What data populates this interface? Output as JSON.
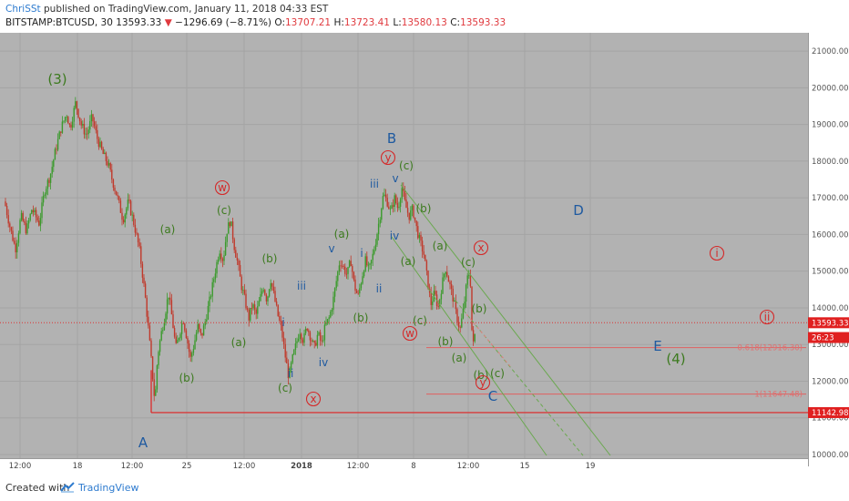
{
  "header": {
    "user": "ChriSSt",
    "published_text": "published on TradingView.com, January 11, 2018 04:33 EST",
    "symbol": "BITSTAMP:BTCUSD, 30",
    "last": "13593.33",
    "change_arrow": "▼",
    "change": "−1296.69 (−8.71%)",
    "o_label": "O:",
    "o_val": "13707.21",
    "h_label": "H:",
    "h_val": "13723.41",
    "l_label": "L:",
    "l_val": "13580.13",
    "c_label": "C:",
    "c_val": "13593.33"
  },
  "footer": {
    "created_with": "Created with",
    "brand": "TradingView"
  },
  "colors": {
    "green_label": "#3c7a1e",
    "blue_label": "#1f5aa0",
    "red_label": "#d42a2a",
    "bull": "#3a9a2c",
    "bear": "#c0392b"
  },
  "chart_data": {
    "type": "candlestick",
    "title": "BITSTAMP:BTCUSD, 30",
    "y_axis": {
      "ylim": [
        9900,
        21500
      ],
      "ticks": [
        "21000.00",
        "20000.00",
        "19000.00",
        "18000.00",
        "17000.00",
        "16000.00",
        "15000.00",
        "14000.00",
        "13000.00",
        "12000.00",
        "11000.00",
        "10000.00"
      ]
    },
    "x_axis": {
      "ticks": [
        "12:00",
        "18",
        "12:00",
        "25",
        "12:00",
        "2018",
        "12:00",
        "8",
        "12:00",
        "15",
        "19"
      ]
    },
    "price_path": [
      [
        0,
        16900
      ],
      [
        6,
        16200
      ],
      [
        12,
        15600
      ],
      [
        18,
        16500
      ],
      [
        24,
        16100
      ],
      [
        30,
        16700
      ],
      [
        38,
        16300
      ],
      [
        44,
        17200
      ],
      [
        50,
        17600
      ],
      [
        56,
        18300
      ],
      [
        62,
        18900
      ],
      [
        68,
        19300
      ],
      [
        72,
        18900
      ],
      [
        78,
        19600
      ],
      [
        84,
        19000
      ],
      [
        90,
        18700
      ],
      [
        96,
        19200
      ],
      [
        102,
        18600
      ],
      [
        108,
        18200
      ],
      [
        114,
        17900
      ],
      [
        118,
        17500
      ],
      [
        124,
        17000
      ],
      [
        130,
        16400
      ],
      [
        136,
        16900
      ],
      [
        142,
        16300
      ],
      [
        148,
        15600
      ],
      [
        154,
        14400
      ],
      [
        158,
        13400
      ],
      [
        162,
        12300
      ],
      [
        165,
        11400
      ],
      [
        168,
        12700
      ],
      [
        172,
        13300
      ],
      [
        176,
        13800
      ],
      [
        180,
        14400
      ],
      [
        184,
        13700
      ],
      [
        188,
        12900
      ],
      [
        192,
        13300
      ],
      [
        196,
        13700
      ],
      [
        200,
        13200
      ],
      [
        204,
        12600
      ],
      [
        208,
        13000
      ],
      [
        212,
        13500
      ],
      [
        216,
        13200
      ],
      [
        220,
        13600
      ],
      [
        226,
        14300
      ],
      [
        232,
        15100
      ],
      [
        236,
        15600
      ],
      [
        240,
        15300
      ],
      [
        244,
        16100
      ],
      [
        248,
        16400
      ],
      [
        252,
        15700
      ],
      [
        256,
        15200
      ],
      [
        260,
        14600
      ],
      [
        264,
        14200
      ],
      [
        268,
        13700
      ],
      [
        272,
        14100
      ],
      [
        276,
        13800
      ],
      [
        280,
        14200
      ],
      [
        284,
        14600
      ],
      [
        288,
        14200
      ],
      [
        292,
        14800
      ],
      [
        296,
        14300
      ],
      [
        300,
        13800
      ],
      [
        304,
        13400
      ],
      [
        308,
        12700
      ],
      [
        312,
        12100
      ],
      [
        316,
        12600
      ],
      [
        320,
        13000
      ],
      [
        324,
        13400
      ],
      [
        328,
        13100
      ],
      [
        332,
        13500
      ],
      [
        336,
        13200
      ],
      [
        340,
        12900
      ],
      [
        344,
        13300
      ],
      [
        348,
        13000
      ],
      [
        352,
        13500
      ],
      [
        356,
        13700
      ],
      [
        360,
        14100
      ],
      [
        364,
        14700
      ],
      [
        368,
        15300
      ],
      [
        372,
        15100
      ],
      [
        376,
        14900
      ],
      [
        380,
        15300
      ],
      [
        384,
        14600
      ],
      [
        388,
        14300
      ],
      [
        392,
        14800
      ],
      [
        396,
        15300
      ],
      [
        400,
        15000
      ],
      [
        404,
        15400
      ],
      [
        408,
        15900
      ],
      [
        412,
        16500
      ],
      [
        416,
        17100
      ],
      [
        420,
        16900
      ],
      [
        424,
        16600
      ],
      [
        428,
        17000
      ],
      [
        432,
        16700
      ],
      [
        436,
        17300
      ],
      [
        440,
        16800
      ],
      [
        444,
        16500
      ],
      [
        448,
        16700
      ],
      [
        452,
        16200
      ],
      [
        456,
        15800
      ],
      [
        460,
        15500
      ],
      [
        464,
        14800
      ],
      [
        468,
        14100
      ],
      [
        472,
        14400
      ],
      [
        476,
        14000
      ],
      [
        480,
        14600
      ],
      [
        484,
        15100
      ],
      [
        488,
        14700
      ],
      [
        492,
        14300
      ],
      [
        496,
        13800
      ],
      [
        500,
        13400
      ],
      [
        504,
        14000
      ],
      [
        508,
        14800
      ],
      [
        511,
        15000
      ],
      [
        513,
        13400
      ],
      [
        515,
        12900
      ],
      [
        517,
        13500
      ]
    ],
    "overlays": {
      "current_price_line": 13593.33,
      "support_line": 11142.98,
      "fib_levels": [
        {
          "label": "0.618(12916.30)",
          "value": 12916.3
        },
        {
          "label": "1(11647.48)",
          "value": 11647.48
        }
      ],
      "price_badges": [
        {
          "label": "13593.33",
          "value": 13593.33
        },
        {
          "label": "26:23",
          "value": 13190
        },
        {
          "label": "11142.98",
          "value": 11142.98
        }
      ]
    },
    "wave_labels": [
      {
        "text": "(3)",
        "color": "green",
        "big": true
      },
      {
        "text": "A",
        "color": "blue",
        "big": true
      },
      {
        "text": "B",
        "color": "blue",
        "big": true
      },
      {
        "text": "C",
        "color": "blue",
        "big": true
      },
      {
        "text": "D",
        "color": "blue",
        "big": true
      },
      {
        "text": "E",
        "color": "blue",
        "big": true
      },
      {
        "text": "(4)",
        "color": "green",
        "big": true
      },
      {
        "text": "(a)",
        "color": "green"
      },
      {
        "text": "(b)",
        "color": "green"
      },
      {
        "text": "(c)",
        "color": "green"
      },
      {
        "text": "(a)",
        "color": "green"
      },
      {
        "text": "(b)",
        "color": "green"
      },
      {
        "text": "(b)",
        "color": "green"
      },
      {
        "text": "(c)",
        "color": "green"
      },
      {
        "text": "(a)",
        "color": "green"
      },
      {
        "text": "(b)",
        "color": "green"
      },
      {
        "text": "(c)",
        "color": "green"
      },
      {
        "text": "(b)",
        "color": "green"
      },
      {
        "text": "(a)",
        "color": "green"
      },
      {
        "text": "(a)",
        "color": "green"
      },
      {
        "text": "(c)",
        "color": "green"
      },
      {
        "text": "(b)",
        "color": "green"
      },
      {
        "text": "(a)",
        "color": "green"
      },
      {
        "text": "(c)",
        "color": "green"
      },
      {
        "text": "(b)",
        "color": "green"
      },
      {
        "text": "(c)",
        "color": "green"
      },
      {
        "text": "i",
        "color": "blue"
      },
      {
        "text": "ii",
        "color": "blue"
      },
      {
        "text": "iii",
        "color": "blue"
      },
      {
        "text": "iv",
        "color": "blue"
      },
      {
        "text": "v",
        "color": "blue"
      },
      {
        "text": "i",
        "color": "blue"
      },
      {
        "text": "ii",
        "color": "blue"
      },
      {
        "text": "iii",
        "color": "blue"
      },
      {
        "text": "iv",
        "color": "blue"
      },
      {
        "text": "v",
        "color": "blue"
      },
      {
        "text": "w",
        "color": "red",
        "circled": true
      },
      {
        "text": "x",
        "color": "red",
        "circled": true
      },
      {
        "text": "y",
        "color": "red",
        "circled": true
      },
      {
        "text": "w",
        "color": "red",
        "circled": true
      },
      {
        "text": "x",
        "color": "red",
        "circled": true
      },
      {
        "text": "y",
        "color": "red",
        "circled": true
      },
      {
        "text": "i",
        "color": "red",
        "circled": true
      },
      {
        "text": "ii",
        "color": "red",
        "circled": true
      }
    ]
  }
}
